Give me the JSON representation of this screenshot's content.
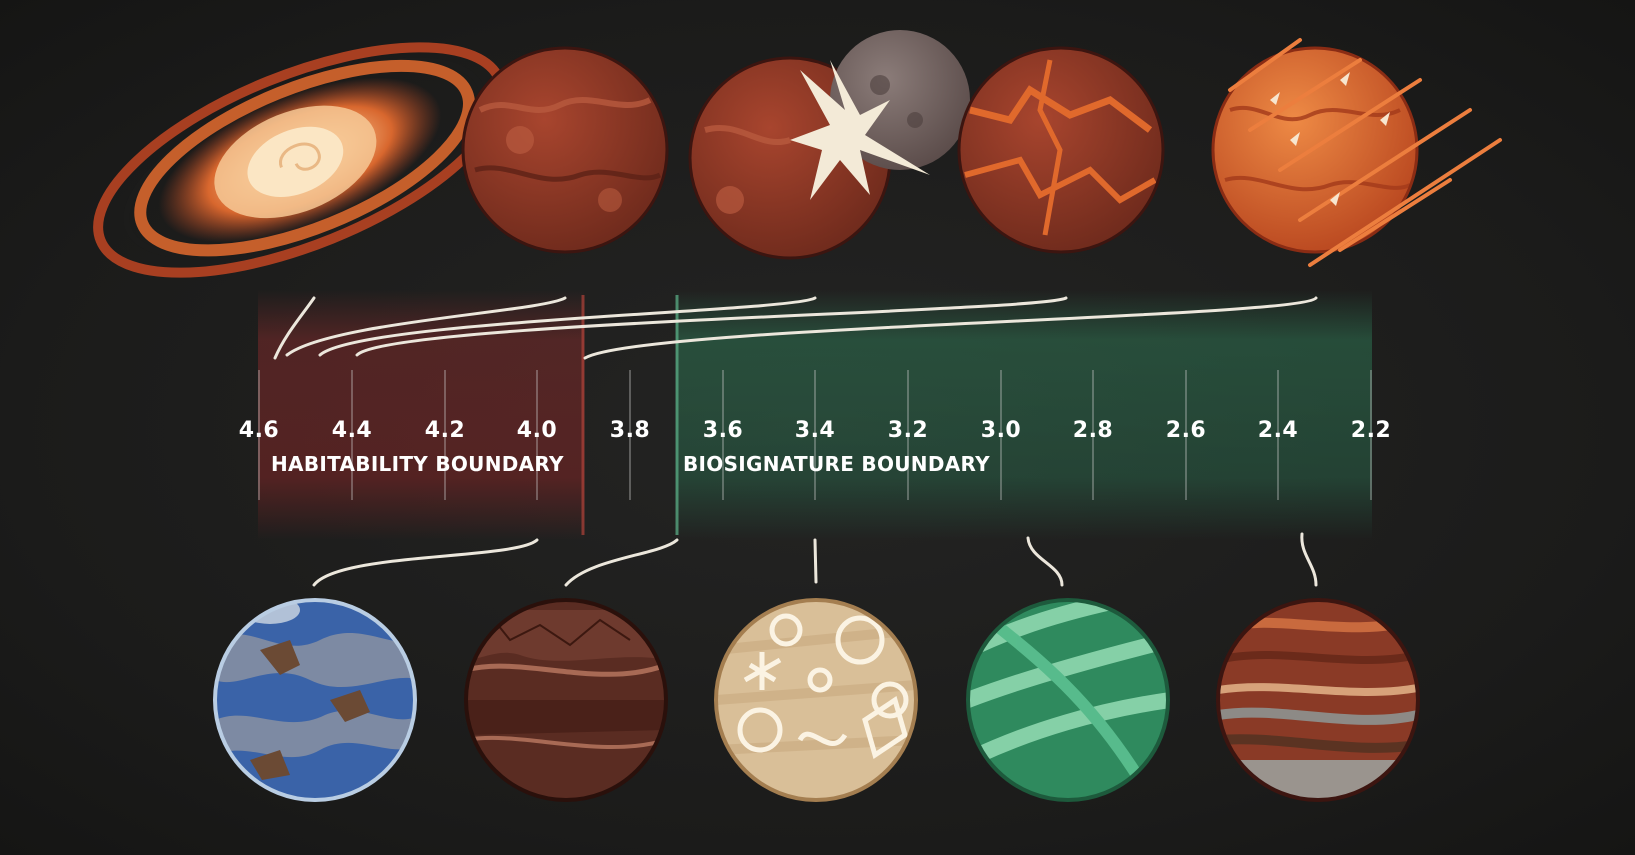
{
  "timeline": {
    "ticks": [
      "4.6",
      "4.4",
      "4.2",
      "4.0",
      "3.8",
      "3.6",
      "3.4",
      "3.2",
      "3.0",
      "2.8",
      "2.6",
      "2.4",
      "2.2"
    ],
    "habitability_label": "HABITABILITY BOUNDARY",
    "biosignature_label": "BIOSIGNATURE BOUNDARY",
    "habitability_color": "#7a2a2a",
    "biosignature_color": "#2f7a56"
  },
  "colors": {
    "background": "#1c1c1b",
    "connector": "#ece7dc",
    "planet_rust": "#8a3a26",
    "planet_orange": "#d8672e",
    "planet_blue": "#3a63a8",
    "planet_sand": "#d9bf98",
    "planet_green": "#2f8a5e"
  },
  "top_illustrations": [
    {
      "icon": "spiral-disk-icon"
    },
    {
      "icon": "rust-planet-icon"
    },
    {
      "icon": "moon-impact-icon"
    },
    {
      "icon": "cracked-planet-icon"
    },
    {
      "icon": "meteor-bombardment-icon"
    }
  ],
  "bottom_illustrations": [
    {
      "icon": "ocean-planet-icon"
    },
    {
      "icon": "rock-strata-icon"
    },
    {
      "icon": "microfossil-icon"
    },
    {
      "icon": "filament-microbe-icon"
    },
    {
      "icon": "banded-layers-icon"
    }
  ]
}
